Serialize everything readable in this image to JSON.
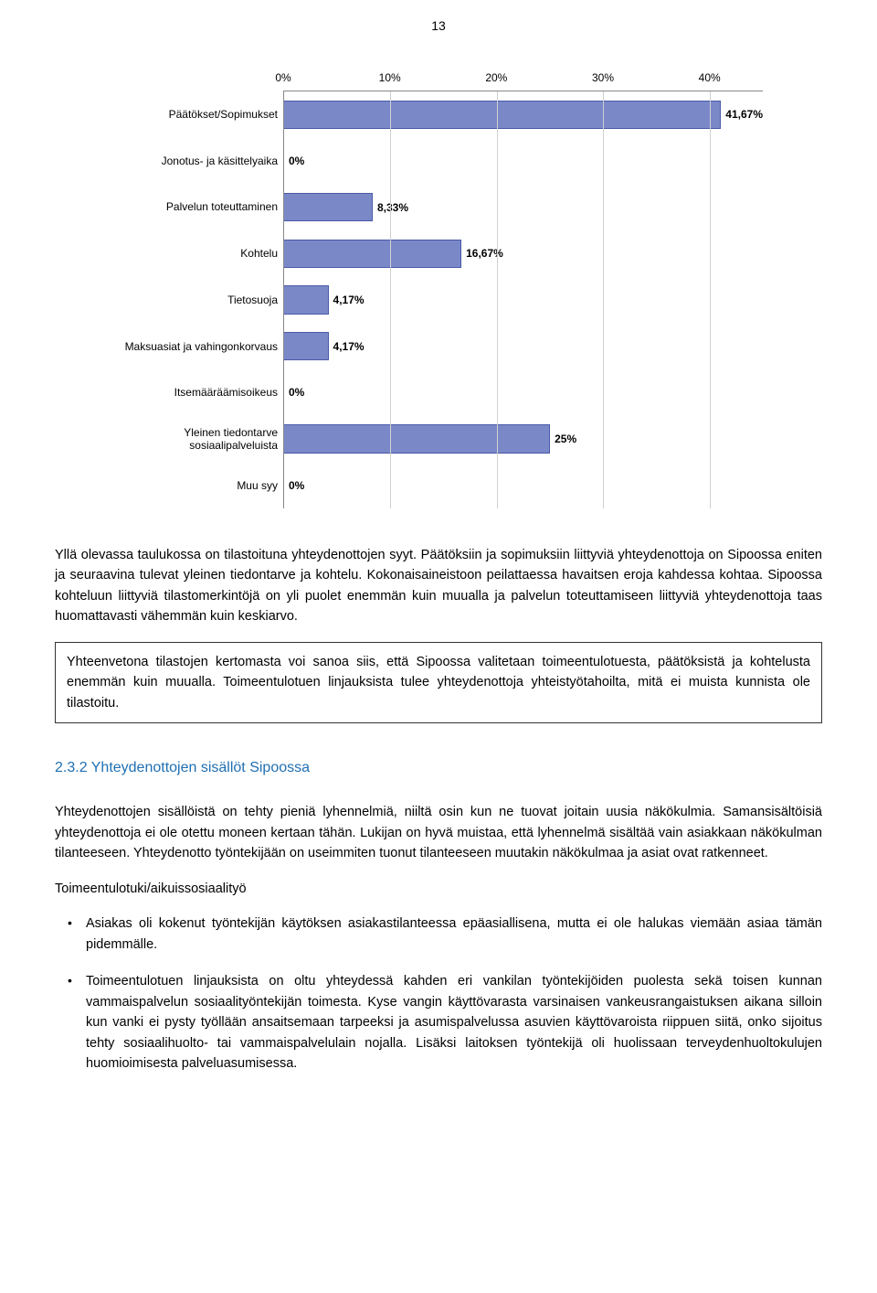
{
  "page_number": "13",
  "chart": {
    "type": "bar-horizontal",
    "xmax": 45,
    "xticks": [
      0,
      10,
      20,
      30,
      40
    ],
    "xtick_labels": [
      "0%",
      "10%",
      "20%",
      "30%",
      "40%"
    ],
    "bar_color": "#7b88c8",
    "bar_border": "#4a5aa8",
    "grid_color": "#d0d0d0",
    "axis_color": "#888888",
    "label_fontsize": 12,
    "categories": [
      {
        "label": "Päätökset/Sopimukset",
        "value": 41.67,
        "value_label": "41,67%"
      },
      {
        "label": "Jonotus- ja käsittelyaika",
        "value": 0,
        "value_label": "0%"
      },
      {
        "label": "Palvelun toteuttaminen",
        "value": 8.33,
        "value_label": "8,33%"
      },
      {
        "label": "Kohtelu",
        "value": 16.67,
        "value_label": "16,67%"
      },
      {
        "label": "Tietosuoja",
        "value": 4.17,
        "value_label": "4,17%"
      },
      {
        "label": "Maksuasiat ja vahingonkorvaus",
        "value": 4.17,
        "value_label": "4,17%"
      },
      {
        "label": "Itsemääräämisoikeus",
        "value": 0,
        "value_label": "0%"
      },
      {
        "label": "Yleinen tiedontarve\nsosiaalipalveluista",
        "value": 25,
        "value_label": "25%"
      },
      {
        "label": "Muu syy",
        "value": 0,
        "value_label": "0%"
      }
    ]
  },
  "para1": "Yllä olevassa taulukossa on tilastoituna yhteydenottojen syyt. Päätöksiin ja sopimuksiin liittyviä yhteydenottoja on Sipoossa eniten ja seuraavina tulevat yleinen tiedontarve ja kohtelu. Kokonaisaineistoon peilattaessa havaitsen eroja kahdessa kohtaa. Sipoossa kohteluun liittyviä tilastomerkintöjä on yli puolet enemmän kuin muualla ja palvelun toteuttamiseen liittyviä yhteydenottoja taas huomattavasti vähemmän kuin keskiarvo.",
  "summary": "Yhteenvetona tilastojen kertomasta voi sanoa siis, että Sipoossa valitetaan toimeentulotuesta, päätöksistä ja kohtelusta enemmän kuin muualla. Toimeentulotuen linjauksista tulee yhteydenottoja yhteistyötahoilta, mitä ei muista kunnista ole tilastoitu.",
  "section_title": "2.3.2 Yhteydenottojen sisällöt Sipoossa",
  "para2": "Yhteydenottojen sisällöistä on tehty pieniä lyhennelmiä, niiltä osin kun ne tuovat joitain uusia näkökulmia. Samansisältöisiä yhteydenottoja ei ole otettu moneen kertaan tähän. Lukijan on hyvä muistaa, että lyhennelmä sisältää vain asiakkaan näkökulman tilanteeseen. Yhteydenotto työntekijään on useimmiten tuonut tilanteeseen muutakin näkökulmaa ja asiat ovat ratkenneet.",
  "subhead": "Toimeentulotuki/aikuissosiaalityö",
  "bullets": [
    "Asiakas oli kokenut työntekijän käytöksen asiakastilanteessa epäasiallisena, mutta ei ole halukas viemään asiaa tämän pidemmälle.",
    "Toimeentulotuen linjauksista on oltu yhteydessä kahden eri vankilan työntekijöiden puolesta sekä toisen kunnan vammaispalvelun sosiaalityöntekijän toimesta. Kyse vangin käyttövarasta varsinaisen vankeusrangaistuksen aikana silloin kun vanki ei pysty työllään ansaitsemaan tarpeeksi ja asumispalvelussa asuvien käyttövaroista riippuen siitä, onko sijoitus tehty sosiaalihuolto- tai vammaispalvelulain nojalla. Lisäksi laitoksen työntekijä oli huolissaan terveydenhuoltokulujen huomioimisesta palveluasumisessa."
  ]
}
